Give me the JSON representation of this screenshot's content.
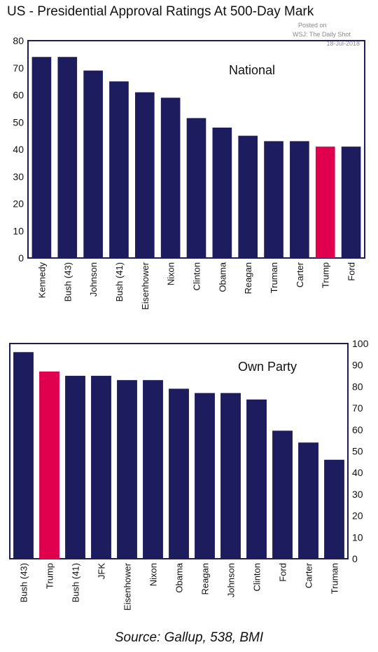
{
  "title": "US - Presidential Approval Ratings At 500-Day Mark",
  "watermark": {
    "line1": "Posted on",
    "line2": "WSJ: The Daily Shot",
    "line3": "18-Jul-2018"
  },
  "source": "Source: Gallup, 538, BMI",
  "colors": {
    "bar": "#1c1c5e",
    "highlight": "#e0004d",
    "axis": "#1c1c5e"
  },
  "chart_data": [
    {
      "type": "bar",
      "title": "National",
      "categories": [
        "Kennedy",
        "Bush (43)",
        "Johnson",
        "Bush (41)",
        "Eisenhower",
        "Nixon",
        "Clinton",
        "Obama",
        "Reagan",
        "Truman",
        "Carter",
        "Trump",
        "Ford"
      ],
      "values": [
        74,
        74,
        69,
        65,
        61,
        59,
        51.5,
        48,
        45,
        43,
        43,
        41,
        41
      ],
      "highlight": "Trump",
      "ylim": [
        0,
        80
      ],
      "yticks": [
        "0",
        "10",
        "20",
        "30",
        "40",
        "50",
        "60",
        "70",
        "80"
      ],
      "yaxis": "left",
      "xlabel": "",
      "ylabel": ""
    },
    {
      "type": "bar",
      "title": "Own Party",
      "categories": [
        "Bush (43)",
        "Trump",
        "Bush (41)",
        "JFK",
        "Eisenhower",
        "Nixon",
        "Obama",
        "Reagan",
        "Johnson",
        "Clinton",
        "Ford",
        "Carter",
        "Truman"
      ],
      "values": [
        96,
        87,
        85,
        85,
        83,
        83,
        79,
        77,
        77,
        74,
        59.5,
        54,
        46
      ],
      "highlight": "Trump",
      "ylim": [
        0,
        100
      ],
      "yticks": [
        "0",
        "10",
        "20",
        "30",
        "40",
        "50",
        "60",
        "70",
        "80",
        "90",
        "100"
      ],
      "yaxis": "right",
      "xlabel": "",
      "ylabel": ""
    }
  ]
}
